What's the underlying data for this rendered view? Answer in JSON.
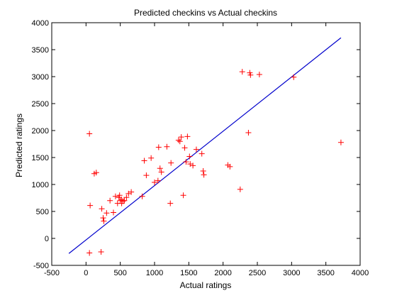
{
  "chart_data": {
    "type": "scatter",
    "title": "Predicted checkins vs Actual checkins",
    "xlabel": "Actual ratings",
    "ylabel": "Predicted ratings",
    "xlim": [
      -500,
      4000
    ],
    "ylim": [
      -500,
      4000
    ],
    "xticks": [
      -500,
      0,
      500,
      1000,
      1500,
      2000,
      2500,
      3000,
      3500,
      4000
    ],
    "yticks": [
      -500,
      0,
      500,
      1000,
      1500,
      2000,
      2500,
      3000,
      3500,
      4000
    ],
    "grid": false,
    "colors": {
      "points": "#ff0000",
      "line": "#0000cc",
      "axes": "#000000",
      "background": "#ffffff"
    },
    "series": [
      {
        "marker": "+",
        "x": [
          50,
          50,
          60,
          120,
          150,
          220,
          230,
          250,
          260,
          300,
          350,
          400,
          430,
          460,
          480,
          490,
          500,
          520,
          520,
          540,
          560,
          590,
          620,
          660,
          820,
          850,
          880,
          950,
          1000,
          1050,
          1060,
          1080,
          1100,
          1180,
          1230,
          1240,
          1350,
          1370,
          1390,
          1420,
          1440,
          1460,
          1480,
          1510,
          1520,
          1560,
          1610,
          1690,
          1710,
          1720,
          2070,
          2100,
          2250,
          2280,
          2370,
          2390,
          2400,
          2530,
          3030,
          3720
        ],
        "y": [
          1940,
          -270,
          610,
          1200,
          1220,
          -250,
          550,
          380,
          320,
          470,
          700,
          480,
          780,
          650,
          760,
          800,
          700,
          650,
          720,
          690,
          700,
          760,
          830,
          860,
          780,
          1440,
          1170,
          1490,
          1040,
          1070,
          1690,
          1300,
          1230,
          1700,
          650,
          1400,
          1820,
          1800,
          1880,
          800,
          1680,
          1420,
          1890,
          1520,
          1380,
          1350,
          1650,
          1570,
          1250,
          1180,
          1360,
          1330,
          910,
          3090,
          1960,
          3070,
          3030,
          3040,
          2990,
          1780
        ]
      },
      {
        "fit_line": {
          "x": [
            -250,
            3720
          ],
          "y": [
            -280,
            3720
          ]
        }
      }
    ]
  }
}
